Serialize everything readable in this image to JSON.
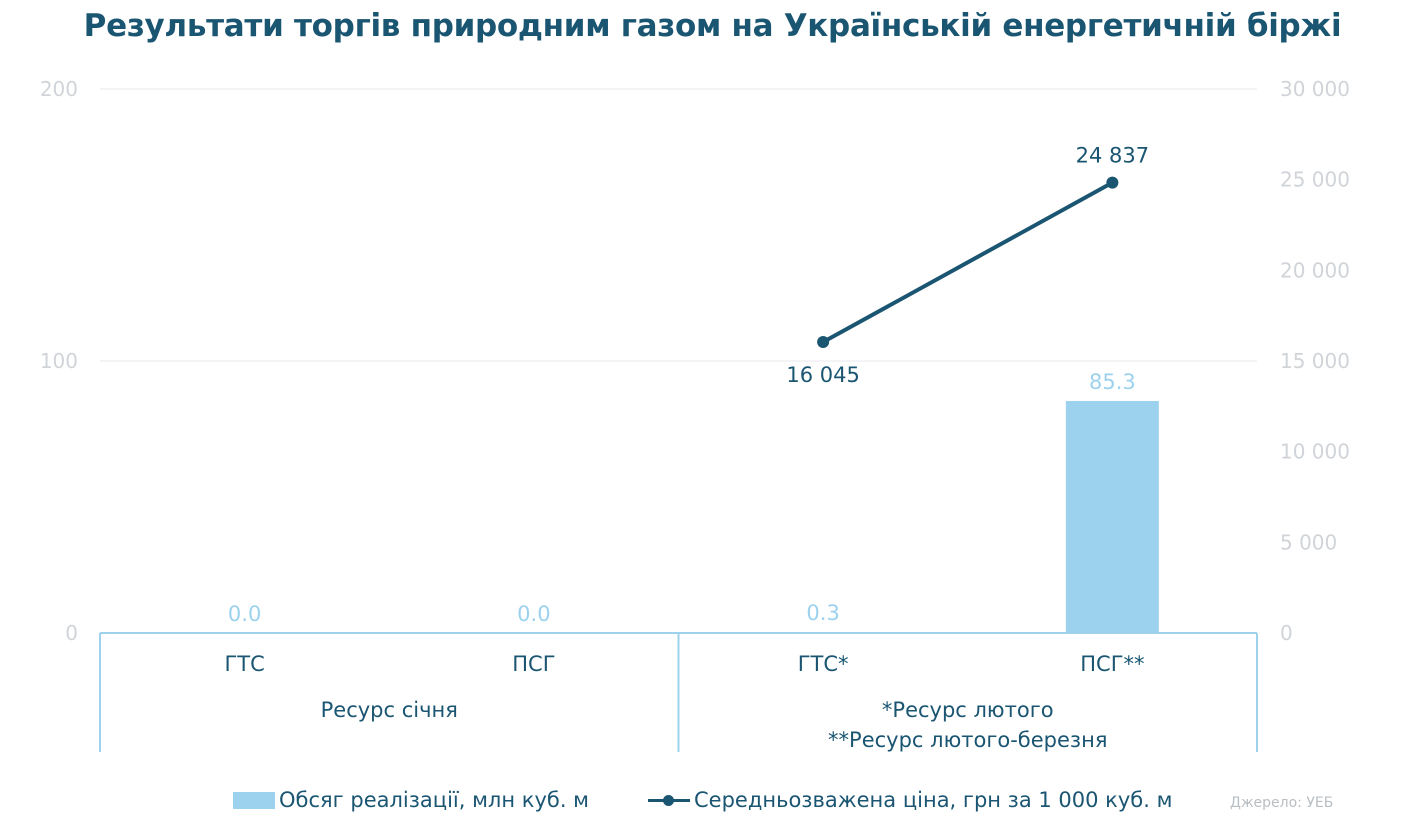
{
  "chart_data": {
    "type": "bar",
    "title": "Результати торгів природним газом на Українській енергетичній біржі",
    "categories": [
      "ГТС",
      "ПСГ",
      "ГТС*",
      "ПСГ**"
    ],
    "groups": [
      {
        "label_lines": [
          "Ресурс січня"
        ],
        "categories": [
          "ГТС",
          "ПСГ"
        ]
      },
      {
        "label_lines": [
          "*Ресурс лютого",
          "**Ресурс лютого-березня"
        ],
        "categories": [
          "ГТС*",
          "ПСГ**"
        ]
      }
    ],
    "series": [
      {
        "name": "Обсяг реалізації, млн куб. м",
        "type": "bar",
        "axis": "left",
        "values": [
          0.0,
          0.0,
          0.3,
          85.3
        ],
        "labels": [
          "0.0",
          "0.0",
          "0.3",
          "85.3"
        ],
        "color": "#9dd2ee"
      },
      {
        "name": "Середньозважена ціна, грн за 1 000 куб. м",
        "type": "line",
        "axis": "right",
        "values": [
          null,
          null,
          16045,
          24837
        ],
        "labels": [
          "",
          "",
          "16 045",
          "24 837"
        ],
        "color": "#1a5572"
      }
    ],
    "y_left": {
      "min": 0,
      "max": 200,
      "ticks": [
        0,
        100,
        200
      ],
      "tick_labels": [
        "0",
        "100",
        "200"
      ]
    },
    "y_right": {
      "min": 0,
      "max": 30000,
      "ticks": [
        0,
        5000,
        10000,
        15000,
        20000,
        25000,
        30000
      ],
      "tick_labels": [
        "0",
        "5 000",
        "10 000",
        "15 000",
        "20 000",
        "25 000",
        "30 000"
      ]
    },
    "grid": true,
    "legend_position": "bottom"
  },
  "source": "Джерело: УЕБ",
  "colors": {
    "title": "#1a5572",
    "bar": "#9dd2ee",
    "line": "#1a5572",
    "axis_text": "#d0d4d8",
    "grid": "#e8eaec",
    "frame": "#9dd2ee"
  }
}
